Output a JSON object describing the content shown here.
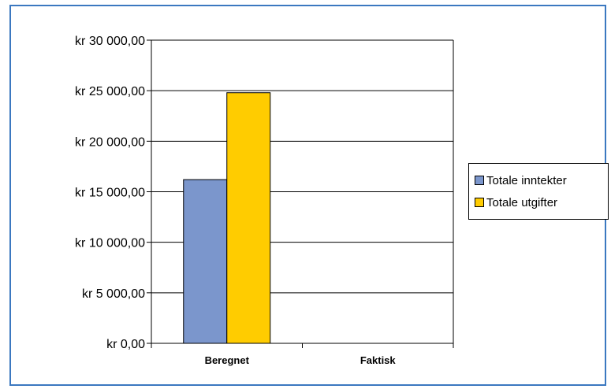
{
  "chart_data": {
    "type": "bar",
    "categories": [
      "Beregnet",
      "Faktisk"
    ],
    "series": [
      {
        "name": "Totale inntekter",
        "color": "#7b96cc",
        "values": [
          16200,
          0
        ]
      },
      {
        "name": "Totale utgifter",
        "color": "#ffcc00",
        "values": [
          24800,
          0
        ]
      }
    ],
    "ylim": [
      0,
      30000
    ],
    "yticks": [
      0,
      5000,
      10000,
      15000,
      20000,
      25000,
      30000
    ],
    "ytick_labels": [
      "kr 0,00",
      "kr 5 000,00",
      "kr 10 000,00",
      "kr 15 000,00",
      "kr 20 000,00",
      "kr 25 000,00",
      "kr 30 000,00"
    ],
    "grid": true,
    "legend_position": "right",
    "frame_color": "#3b78c0"
  }
}
